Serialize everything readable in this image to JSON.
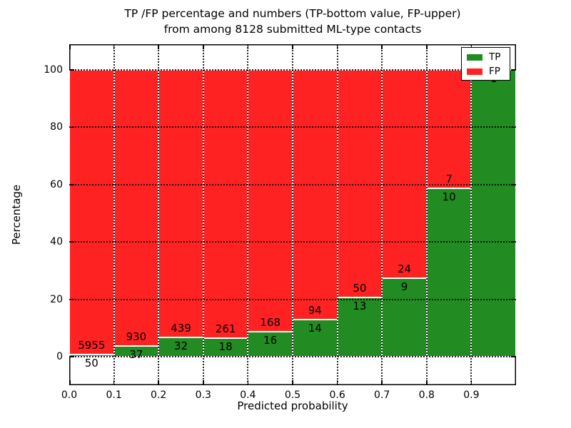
{
  "title": {
    "line1": "TP /FP percentage and numbers (TP-bottom value, FP-upper)",
    "line2": "from among 8128 submitted ML-type contacts"
  },
  "x_axis": {
    "label": "Predicted probability",
    "ticks": [
      "0.0",
      "0.1",
      "0.2",
      "0.3",
      "0.4",
      "0.5",
      "0.6",
      "0.7",
      "0.8",
      "0.9"
    ]
  },
  "y_axis": {
    "label": "Percentage",
    "ticks": [
      "0",
      "20",
      "40",
      "60",
      "80",
      "100"
    ]
  },
  "legend": {
    "position": "upper right",
    "items": [
      {
        "label": "TP",
        "color": "#228b22"
      },
      {
        "label": "FP",
        "color": "#ff2222"
      }
    ]
  },
  "chart_data": {
    "type": "bar",
    "stacked": true,
    "normalized": "each bin stacked to 100 percent",
    "title": "TP /FP percentage and numbers (TP-bottom value, FP-upper) from among 8128 submitted ML-type contacts",
    "xlabel": "Predicted probability",
    "ylabel": "Percentage",
    "xlim": [
      0.0,
      1.0
    ],
    "ylim": [
      -10,
      110
    ],
    "bin_width": 0.1,
    "bin_starts": [
      0.0,
      0.1,
      0.2,
      0.3,
      0.4,
      0.5,
      0.6,
      0.7,
      0.8,
      0.9
    ],
    "series": [
      {
        "name": "TP",
        "color": "#228b22",
        "counts": [
          50,
          37,
          32,
          18,
          16,
          14,
          13,
          9,
          10,
          1
        ]
      },
      {
        "name": "FP",
        "color": "#ff2222",
        "counts": [
          5955,
          930,
          439,
          261,
          168,
          94,
          50,
          24,
          7,
          0
        ]
      }
    ],
    "tp_percent": [
      0.8,
      3.8,
      6.8,
      6.5,
      8.7,
      13.0,
      20.6,
      27.3,
      58.8,
      100.0
    ],
    "total_contacts": 8128,
    "grid": "black dotted gridlines: vertical every 0.1, horizontal every 20",
    "bar_edge_color": "#ffffff",
    "notes": "TP count labels sit just below the green/red boundary, FP labels just above it; the TP label 1 of the last bin is partially hidden behind the legend and the last bin shows no red (FP=0)"
  }
}
